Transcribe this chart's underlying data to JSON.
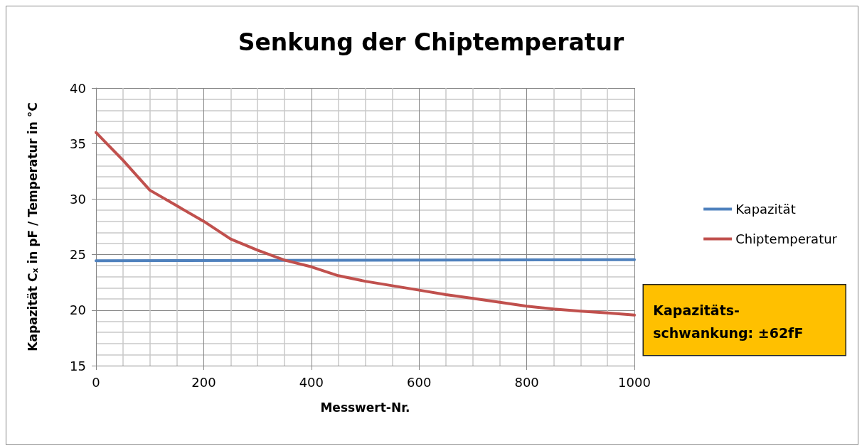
{
  "chart_data": {
    "type": "line",
    "title": "Senkung der Chiptemperatur",
    "xlabel": "Messwert-Nr.",
    "ylabel": "Kapazität C$_{x}$ in pF / Temperatur in °C",
    "x": [
      0,
      50,
      100,
      150,
      200,
      250,
      300,
      350,
      400,
      450,
      500,
      550,
      600,
      650,
      700,
      750,
      800,
      850,
      900,
      950,
      1000
    ],
    "series": [
      {
        "name": "Kapazität",
        "color": "#4f81bd",
        "x": [
          0,
          500,
          1000
        ],
        "values": [
          24.45,
          24.5,
          24.55
        ]
      },
      {
        "name": "Chiptemperatur",
        "color": "#c0504d",
        "values": [
          36.0,
          33.5,
          30.8,
          29.4,
          28.0,
          26.4,
          25.4,
          24.5,
          23.9,
          23.1,
          22.6,
          22.2,
          21.8,
          21.4,
          21.06,
          20.7,
          20.36,
          20.1,
          19.9,
          19.75,
          19.55
        ]
      }
    ],
    "xlim": [
      0,
      1000
    ],
    "xticks": [
      0,
      200,
      400,
      600,
      800,
      1000
    ],
    "ylim": [
      15,
      40
    ],
    "yticks": [
      15,
      20,
      25,
      30,
      35,
      40
    ],
    "grid": true,
    "legend": "right",
    "marker": "none",
    "line_style": "solid",
    "annotations": [
      "Kapazitäts-\nschwankung: ±62fF"
    ]
  }
}
